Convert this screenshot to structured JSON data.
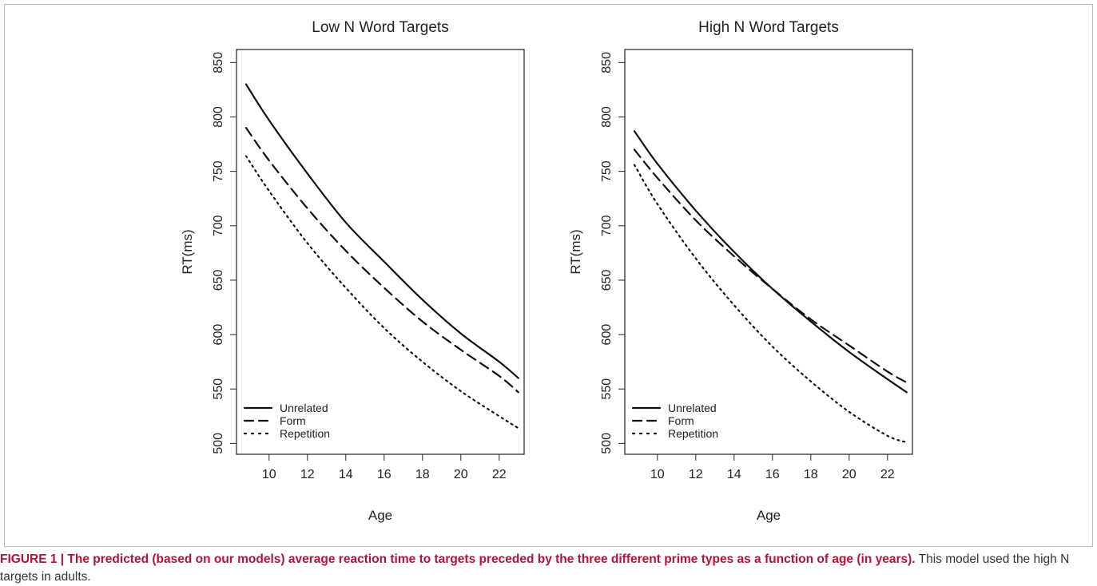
{
  "chart_data": [
    {
      "type": "line",
      "title": "Low N Word Targets",
      "xlabel": "Age",
      "ylabel": "RT(ms)",
      "xlim": [
        8.3,
        23.3
      ],
      "ylim": [
        490,
        862
      ],
      "xticks": [
        10,
        12,
        14,
        16,
        18,
        20,
        22
      ],
      "yticks": [
        500,
        550,
        600,
        650,
        700,
        750,
        800,
        850
      ],
      "grid": false,
      "legend_position": "bottom-left",
      "x": [
        8.8,
        10,
        12,
        14,
        16,
        18,
        20,
        22,
        23
      ],
      "series": [
        {
          "name": "Unrelated",
          "style": "solid",
          "values": [
            830,
            797,
            748,
            703,
            667,
            632,
            601,
            575,
            560
          ]
        },
        {
          "name": "Form",
          "style": "dashed",
          "values": [
            790,
            760,
            716,
            677,
            643,
            612,
            586,
            562,
            547
          ]
        },
        {
          "name": "Repetition",
          "style": "dotted",
          "values": [
            764,
            732,
            684,
            643,
            606,
            575,
            548,
            525,
            514
          ]
        }
      ]
    },
    {
      "type": "line",
      "title": "High N Word Targets",
      "xlabel": "Age",
      "ylabel": "RT(ms)",
      "xlim": [
        8.3,
        23.3
      ],
      "ylim": [
        490,
        862
      ],
      "xticks": [
        10,
        12,
        14,
        16,
        18,
        20,
        22
      ],
      "yticks": [
        500,
        550,
        600,
        650,
        700,
        750,
        800,
        850
      ],
      "grid": false,
      "legend_position": "bottom-left",
      "x": [
        8.8,
        10,
        12,
        14,
        16,
        18,
        20,
        22,
        23
      ],
      "series": [
        {
          "name": "Unrelated",
          "style": "solid",
          "values": [
            787,
            757,
            714,
            676,
            642,
            612,
            584,
            559,
            547
          ]
        },
        {
          "name": "Form",
          "style": "dashed",
          "values": [
            770,
            744,
            705,
            672,
            642,
            614,
            590,
            566,
            556
          ]
        },
        {
          "name": "Repetition",
          "style": "dotted",
          "values": [
            756,
            720,
            670,
            627,
            589,
            557,
            529,
            507,
            501
          ]
        }
      ]
    }
  ],
  "caption": {
    "bold": "FIGURE 1 | The predicted (based on our models) average reaction time to targets preceded by the three different prime types as a function of age (in years).",
    "rest": " This model used the high N targets in adults."
  }
}
